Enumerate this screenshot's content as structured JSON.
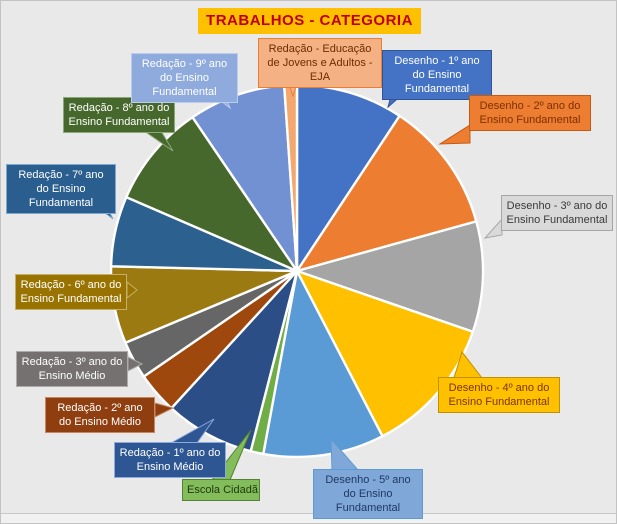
{
  "styles": {
    "canvas_bg": "#E9E9E9",
    "frame_border": "#C3C3C3",
    "title_bg": "#FFC000",
    "title_fg": "#C00000",
    "slice_stroke": "#FFFFFF"
  },
  "chart_data": {
    "type": "pie",
    "title": "TRABALHOS - CATEGORIA",
    "legend": "none",
    "data_labels": "category-name callouts pointing at each slice",
    "start_angle_deg": 0,
    "direction": "clockwise",
    "values_unit": "percent (estimated from slice angles; no numeric labels shown)",
    "slices": [
      {
        "id": "desenho-1-ano-ef",
        "label": "Desenho - 1º ano do Ensino Fundamental",
        "value": 9.3,
        "color": "#4472C4",
        "callout": {
          "bg": "#4472C4",
          "fg": "#FFFFFF",
          "border": "#2F5597"
        }
      },
      {
        "id": "desenho-2-ano-ef",
        "label": "Desenho - 2º ano do Ensino Fundamental",
        "value": 11.4,
        "color": "#ED7D31",
        "callout": {
          "bg": "#ED7D31",
          "fg": "#7B3000",
          "border": "#C55A11"
        }
      },
      {
        "id": "desenho-3-ano-ef",
        "label": "Desenho - 3º ano do Ensino Fundamental",
        "value": 9.6,
        "color": "#A5A5A5",
        "callout": {
          "bg": "#D9D9D9",
          "fg": "#3A3A3A",
          "border": "#A6A6A6"
        }
      },
      {
        "id": "desenho-4-ano-ef",
        "label": "Desenho - 4º ano do Ensino Fundamental",
        "value": 12.1,
        "color": "#FFC000",
        "callout": {
          "bg": "#FFC000",
          "fg": "#7B3500",
          "border": "#BF9000"
        }
      },
      {
        "id": "desenho-5-ano-ef",
        "label": "Desenho - 5º ano do Ensino Fundamental",
        "value": 10.5,
        "color": "#5B9BD5",
        "callout": {
          "bg": "#7FA8D8",
          "fg": "#1F3864",
          "border": "#5B9BD5"
        }
      },
      {
        "id": "escola-cidada",
        "label": "Escola Cidadã",
        "value": 1.1,
        "color": "#70AD47",
        "callout": {
          "bg": "#83BC5B",
          "fg": "#203A10",
          "border": "#548235"
        }
      },
      {
        "id": "redacao-1-ano-em",
        "label": "Redação - 1º ano do Ensino Médio",
        "value": 7.8,
        "color": "#2A4E85",
        "callout": {
          "bg": "#2E5693",
          "fg": "#FFFFFF",
          "border": "#8EA9DB"
        }
      },
      {
        "id": "redacao-2-ano-em",
        "label": "Redação - 2º ano do Ensino Médio",
        "value": 3.6,
        "color": "#9E480E",
        "callout": {
          "bg": "#8F3E10",
          "fg": "#FFFFFF",
          "border": "#C8875F"
        }
      },
      {
        "id": "redacao-3-ano-em",
        "label": "Redação - 3º ano do Ensino Médio",
        "value": 3.3,
        "color": "#666666",
        "callout": {
          "bg": "#757171",
          "fg": "#FFFFFF",
          "border": "#AEAAAA"
        }
      },
      {
        "id": "redacao-6-ano-ef",
        "label": "Redação - 6º ano do Ensino Fundamental",
        "value": 6.7,
        "color": "#9B7A11",
        "callout": {
          "bg": "#997300",
          "fg": "#FFFFFF",
          "border": "#C5B06B"
        }
      },
      {
        "id": "redacao-7-ano-ef",
        "label": "Redação - 7º ano do Ensino Fundamental",
        "value": 6.1,
        "color": "#2C608F",
        "callout": {
          "bg": "#2A5E8E",
          "fg": "#FFFFFF",
          "border": "#7FA8D0"
        }
      },
      {
        "id": "redacao-8-ano-ef",
        "label": "Redação - 8º ano do Ensino Fundamental",
        "value": 9.0,
        "color": "#47682D",
        "callout": {
          "bg": "#47682D",
          "fg": "#FFFFFF",
          "border": "#8BA878"
        }
      },
      {
        "id": "redacao-9-ano-ef",
        "label": "Redação - 9º ano do Ensino Fundamental",
        "value": 8.4,
        "color": "#7291D2",
        "callout": {
          "bg": "#8FAADC",
          "fg": "#FFFFFF",
          "border": "#BDCCE9"
        }
      },
      {
        "id": "redacao-eja",
        "label": "Redação - Educação de Jovens e Adultos - EJA",
        "value": 1.1,
        "color": "#F4A870",
        "callout": {
          "bg": "#F4B183",
          "fg": "#6E2C00",
          "border": "#ED7D31"
        }
      }
    ]
  }
}
